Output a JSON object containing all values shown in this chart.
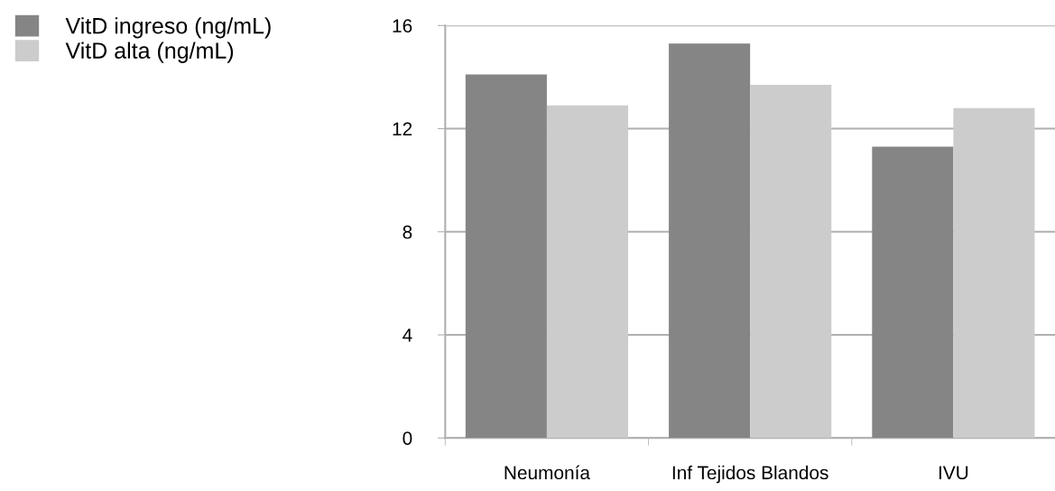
{
  "chart_data": {
    "type": "bar",
    "categories": [
      "Neumonía",
      "Inf Tejidos Blandos",
      "IVU"
    ],
    "series": [
      {
        "name": "VitD ingreso (ng/mL)",
        "color": "#848584",
        "values": [
          14.1,
          15.3,
          11.3
        ]
      },
      {
        "name": "VitD alta (ng/mL)",
        "color": "#cbcccb",
        "values": [
          12.9,
          13.7,
          12.8
        ]
      }
    ],
    "ylim": [
      0,
      16
    ],
    "yticks": [
      0,
      4,
      8,
      12,
      16
    ],
    "grid": "y",
    "legend": "top left"
  }
}
